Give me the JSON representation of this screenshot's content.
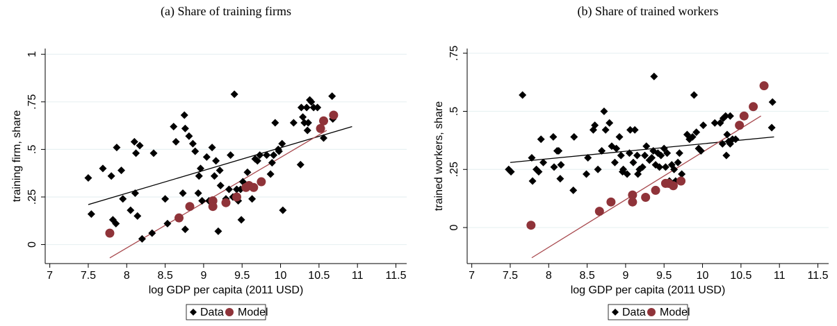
{
  "chart_data": [
    {
      "type": "scatter",
      "title": "(a) Share of training firms",
      "x_label": "log GDP per capita (2011 USD)",
      "y_label": "training firm, share",
      "xlim": [
        6.94,
        11.64
      ],
      "ylim": [
        -0.1,
        1.03
      ],
      "xticks": [
        7,
        7.5,
        8,
        8.5,
        9,
        9.5,
        10,
        10.5,
        11,
        11.5
      ],
      "yticks": [
        0,
        {
          "value": 0.25,
          "label": ".25"
        },
        {
          "value": 0.5,
          "label": ".5"
        },
        {
          "value": 0.75,
          "label": ".75"
        },
        1
      ],
      "grid": true,
      "series": [
        {
          "name": "Data",
          "color": "#000000",
          "marker": "diamond",
          "x": [
            7.5,
            7.54,
            7.69,
            7.8,
            7.82,
            7.86,
            7.87,
            7.93,
            7.95,
            8.05,
            8.1,
            8.11,
            8.12,
            8.14,
            8.17,
            8.2,
            8.33,
            8.35,
            8.5,
            8.53,
            8.61,
            8.64,
            8.73,
            8.75,
            8.76,
            8.76,
            8.81,
            8.86,
            8.89,
            8.93,
            8.94,
            8.96,
            8.98,
            9.04,
            9.07,
            9.11,
            9.14,
            9.16,
            9.19,
            9.21,
            9.22,
            9.29,
            9.33,
            9.35,
            9.38,
            9.4,
            9.43,
            9.45,
            9.48,
            9.49,
            9.51,
            9.57,
            9.61,
            9.63,
            9.67,
            9.7,
            9.73,
            9.82,
            9.87,
            9.89,
            9.91,
            9.93,
            9.97,
            9.98,
            10.02,
            10.03,
            10.17,
            10.26,
            10.27,
            10.29,
            10.31,
            10.34,
            10.35,
            10.36,
            10.38,
            10.4,
            10.43,
            10.48,
            10.56,
            10.67,
            10.68
          ],
          "values": [
            0.35,
            0.16,
            0.4,
            0.36,
            0.13,
            0.11,
            0.51,
            0.39,
            0.24,
            0.18,
            0.54,
            0.27,
            0.48,
            0.15,
            0.52,
            0.03,
            0.06,
            0.48,
            0.24,
            0.11,
            0.62,
            0.54,
            0.27,
            0.68,
            0.08,
            0.61,
            0.57,
            0.53,
            0.49,
            0.27,
            0.36,
            0.4,
            0.23,
            0.46,
            0.23,
            0.51,
            0.36,
            0.44,
            0.07,
            0.39,
            0.31,
            0.24,
            0.29,
            0.47,
            0.25,
            0.79,
            0.29,
            0.23,
            0.29,
            0.13,
            0.33,
            0.38,
            0.31,
            0.24,
            0.45,
            0.44,
            0.47,
            0.47,
            0.37,
            0.43,
            0.47,
            0.64,
            0.5,
            0.49,
            0.53,
            0.18,
            0.64,
            0.42,
            0.72,
            0.67,
            0.64,
            0.72,
            0.6,
            0.64,
            0.76,
            0.75,
            0.72,
            0.72,
            0.56,
            0.78,
            0.66
          ],
          "fit": {
            "x": [
              7.5,
              10.93
            ],
            "values": [
              0.21,
              0.62
            ],
            "color": "#000000"
          }
        },
        {
          "name": "Model",
          "color": "#8f3339",
          "marker": "circle",
          "x": [
            7.78,
            8.68,
            8.82,
            9.12,
            9.12,
            9.29,
            9.43,
            9.55,
            9.59,
            9.65,
            9.75,
            10.52,
            10.56,
            10.69
          ],
          "values": [
            0.06,
            0.14,
            0.2,
            0.23,
            0.2,
            0.22,
            0.25,
            0.3,
            0.31,
            0.3,
            0.33,
            0.61,
            0.65,
            0.68
          ],
          "fit": {
            "x": [
              7.78,
              10.6
            ],
            "values": [
              -0.07,
              0.6
            ],
            "color": "#a8494e"
          }
        }
      ]
    },
    {
      "type": "scatter",
      "title": "(b) Share of trained workers",
      "x_label": "log GDP per capita (2011 USD)",
      "y_label": "trained workers, share",
      "xlim": [
        6.94,
        11.64
      ],
      "ylim": [
        -0.155,
        0.77
      ],
      "xticks": [
        7,
        7.5,
        8,
        8.5,
        9,
        9.5,
        10,
        10.5,
        11,
        11.5
      ],
      "yticks": [
        0,
        {
          "value": 0.25,
          "label": ".25"
        },
        {
          "value": 0.5,
          "label": ".5"
        },
        {
          "value": 0.75,
          "label": ".75"
        }
      ],
      "grid": true,
      "series": [
        {
          "name": "Data",
          "color": "#000000",
          "marker": "diamond",
          "x": [
            7.48,
            7.51,
            7.66,
            7.78,
            7.79,
            7.84,
            7.87,
            7.9,
            7.93,
            8.06,
            8.07,
            8.11,
            8.13,
            8.15,
            8.16,
            8.32,
            8.33,
            8.49,
            8.51,
            8.58,
            8.6,
            8.64,
            8.69,
            8.72,
            8.74,
            8.79,
            8.82,
            8.86,
            8.88,
            8.92,
            8.94,
            8.96,
            8.97,
            9.02,
            9.05,
            9.06,
            9.1,
            9.12,
            9.15,
            9.16,
            9.18,
            9.22,
            9.25,
            9.27,
            9.31,
            9.34,
            9.36,
            9.37,
            9.39,
            9.42,
            9.44,
            9.46,
            9.5,
            9.52,
            9.54,
            9.57,
            9.6,
            9.63,
            9.65,
            9.68,
            9.7,
            9.73,
            9.8,
            9.83,
            9.87,
            9.89,
            9.92,
            9.95,
            10.01,
            9.98,
            10.16,
            10.23,
            10.26,
            10.27,
            10.3,
            10.31,
            10.32,
            10.34,
            10.36,
            10.36,
            10.39,
            10.43,
            10.91,
            10.9
          ],
          "values": [
            0.25,
            0.24,
            0.57,
            0.3,
            0.2,
            0.25,
            0.24,
            0.38,
            0.28,
            0.39,
            0.26,
            0.33,
            0.33,
            0.21,
            0.27,
            0.16,
            0.39,
            0.23,
            0.3,
            0.42,
            0.44,
            0.25,
            0.33,
            0.5,
            0.42,
            0.45,
            0.35,
            0.28,
            0.34,
            0.39,
            0.31,
            0.24,
            0.25,
            0.23,
            0.32,
            0.42,
            0.28,
            0.42,
            0.31,
            0.23,
            0.25,
            0.26,
            0.31,
            0.35,
            0.29,
            0.3,
            0.33,
            0.65,
            0.27,
            0.32,
            0.26,
            0.31,
            0.34,
            0.26,
            0.32,
            0.2,
            0.27,
            0.25,
            0.2,
            0.28,
            0.32,
            0.23,
            0.4,
            0.38,
            0.39,
            0.57,
            0.41,
            0.34,
            0.44,
            0.33,
            0.45,
            0.45,
            0.36,
            0.47,
            0.48,
            0.31,
            0.4,
            0.37,
            0.36,
            0.48,
            0.38,
            0.38,
            0.54,
            0.43
          ],
          "fit": {
            "x": [
              7.5,
              10.93
            ],
            "values": [
              0.28,
              0.39
            ],
            "color": "#000000"
          }
        },
        {
          "name": "Model",
          "color": "#8f3339",
          "marker": "circle",
          "x": [
            7.77,
            8.66,
            8.81,
            9.09,
            9.09,
            9.26,
            9.39,
            9.52,
            9.56,
            9.62,
            9.72,
            10.48,
            10.54,
            10.66,
            10.8
          ],
          "values": [
            0.01,
            0.07,
            0.11,
            0.11,
            0.14,
            0.13,
            0.16,
            0.19,
            0.19,
            0.18,
            0.2,
            0.44,
            0.48,
            0.52,
            0.61
          ],
          "fit": {
            "x": [
              7.78,
              10.76
            ],
            "values": [
              -0.13,
              0.48
            ],
            "color": "#a8494e"
          }
        }
      ]
    }
  ]
}
